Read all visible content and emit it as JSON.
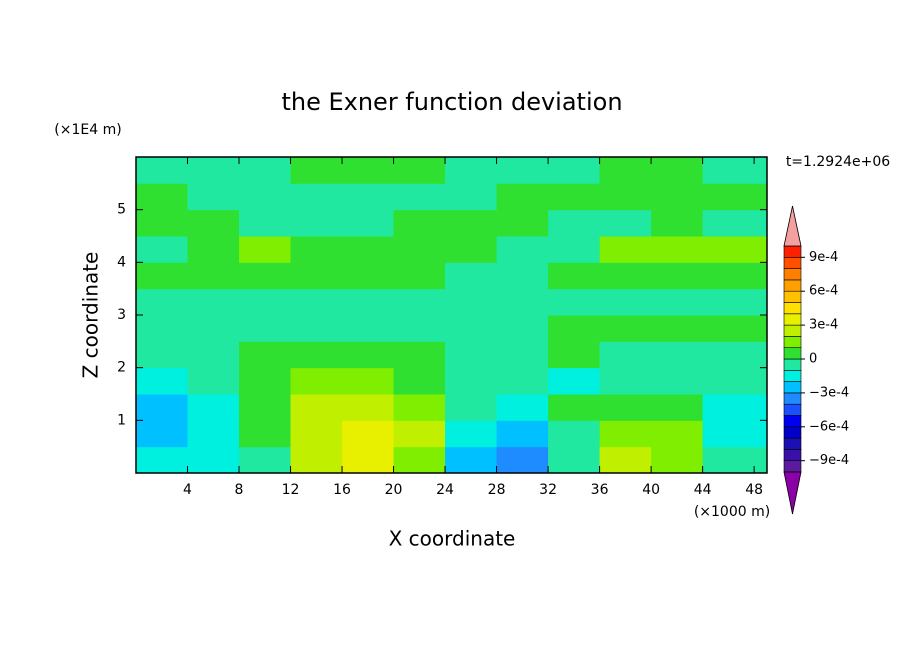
{
  "chart_data": {
    "type": "contour",
    "title": "the Exner function deviation",
    "x_label": "X coordinate",
    "y_label": "Z coordinate",
    "x_unit": "(×1000 m)",
    "y_unit": "(×1E4 m)",
    "annotation": "t=1.2924e+06",
    "xlim": [
      0,
      49
    ],
    "ylim": [
      0,
      6
    ],
    "xticks": [
      4,
      8,
      12,
      16,
      20,
      24,
      28,
      32,
      36,
      40,
      44,
      48
    ],
    "yticks": [
      1,
      2,
      3,
      4,
      5
    ],
    "x": [
      2,
      6,
      10,
      14,
      18,
      22,
      26,
      30,
      34,
      38,
      42,
      46
    ],
    "z": [
      0.25,
      0.75,
      1.25,
      1.75,
      2.25,
      2.75,
      3.25,
      3.75,
      4.25,
      4.75,
      5.25,
      5.75
    ],
    "values": [
      [
        -0.00015,
        -0.00015,
        -5e-05,
        0.00025,
        0.00035,
        0.00015,
        -0.00025,
        -0.00035,
        -0.0001,
        0.00025,
        0.00015,
        -5e-05
      ],
      [
        -0.00025,
        -0.00015,
        5e-05,
        0.00025,
        0.00035,
        0.00025,
        -0.00015,
        -0.00025,
        -5e-05,
        0.00015,
        0.00015,
        -0.00015
      ],
      [
        -0.00025,
        -0.00015,
        5e-05,
        0.00025,
        0.00025,
        0.00015,
        -5e-05,
        -0.00015,
        5e-05,
        5e-05,
        5e-05,
        -0.00015
      ],
      [
        -0.00015,
        -5e-05,
        5e-05,
        0.00015,
        0.00015,
        5e-05,
        -5e-05,
        -5e-05,
        -0.00015,
        -5e-05,
        -5e-05,
        -5e-05
      ],
      [
        -5e-05,
        -5e-05,
        5e-05,
        5e-05,
        5e-05,
        5e-05,
        -5e-05,
        -5e-05,
        5e-05,
        -5e-05,
        -5e-05,
        -5e-05
      ],
      [
        -5e-05,
        -5e-05,
        -5e-05,
        -5e-05,
        -5e-05,
        -5e-05,
        -5e-05,
        -5e-05,
        5e-05,
        5e-05,
        5e-05,
        5e-05
      ],
      [
        -5e-05,
        -5e-05,
        -5e-05,
        -5e-05,
        -5e-05,
        -5e-05,
        -5e-05,
        -5e-05,
        -5e-05,
        -5e-05,
        -5e-05,
        -5e-05
      ],
      [
        5e-05,
        5e-05,
        5e-05,
        5e-05,
        5e-05,
        5e-05,
        -5e-05,
        -5e-05,
        5e-05,
        5e-05,
        5e-05,
        5e-05
      ],
      [
        -5e-05,
        5e-05,
        0.00015,
        5e-05,
        5e-05,
        5e-05,
        5e-05,
        -5e-05,
        -5e-05,
        0.00015,
        0.00015,
        0.00015
      ],
      [
        5e-05,
        5e-05,
        -5e-05,
        -5e-05,
        -5e-05,
        5e-05,
        5e-05,
        5e-05,
        -5e-05,
        -5e-05,
        5e-05,
        -5e-05
      ],
      [
        5e-05,
        -5e-05,
        -5e-05,
        -5e-05,
        -5e-05,
        -5e-05,
        -5e-05,
        5e-05,
        5e-05,
        5e-05,
        5e-05,
        5e-05
      ],
      [
        -5e-05,
        -5e-05,
        -5e-05,
        5e-05,
        5e-05,
        5e-05,
        -5e-05,
        -5e-05,
        -5e-05,
        5e-05,
        5e-05,
        -5e-05
      ]
    ],
    "colorbar": {
      "levels": [
        -0.001,
        -0.0009,
        -0.0008,
        -0.0007,
        -0.0006,
        -0.0005,
        -0.0004,
        -0.0003,
        -0.0002,
        -0.0001,
        0,
        0.0001,
        0.0002,
        0.0003,
        0.0004,
        0.0005,
        0.0006,
        0.0007,
        0.0008,
        0.0009,
        0.001
      ],
      "colors": [
        "#8c00a8",
        "#5c1a9c",
        "#3a10a8",
        "#1a10b4",
        "#0000c8",
        "#0000f0",
        "#1a50ff",
        "#1e8cff",
        "#00c0ff",
        "#00f0e0",
        "#20e8a0",
        "#30e030",
        "#80ee00",
        "#c0f000",
        "#e8f000",
        "#ffe000",
        "#ffc000",
        "#ffa000",
        "#ff8000",
        "#ff5000",
        "#ff2000",
        "#f4a0a0"
      ],
      "ticks": [
        {
          "value": 0.0009,
          "label": "9e-4"
        },
        {
          "value": 0.0006,
          "label": "6e-4"
        },
        {
          "value": 0.0003,
          "label": "3e-4"
        },
        0,
        {
          "value": -0.0003,
          "label": "−3e-4"
        },
        {
          "value": -0.0006,
          "label": "−6e-4"
        },
        {
          "value": -0.0009,
          "label": "−9e-4"
        }
      ]
    }
  }
}
